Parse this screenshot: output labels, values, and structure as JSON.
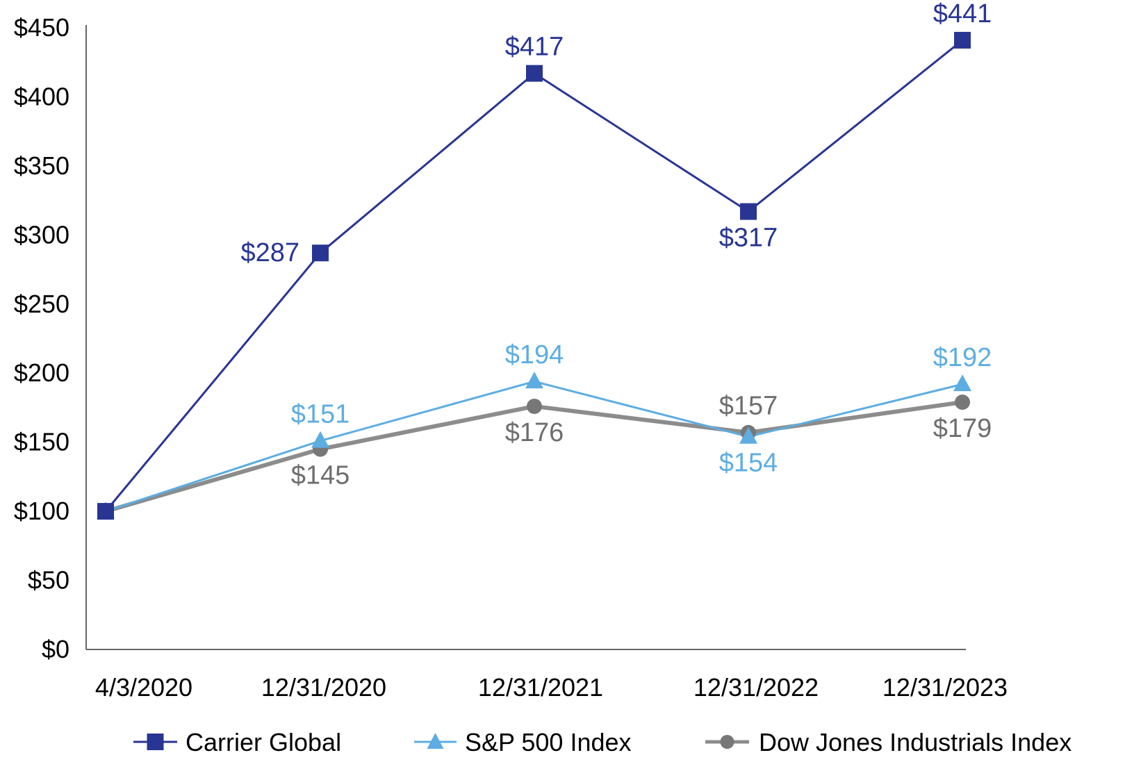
{
  "chart_data": {
    "type": "line",
    "categories": [
      "4/3/2020",
      "12/31/2020",
      "12/31/2021",
      "12/31/2022",
      "12/31/2023"
    ],
    "ylim": [
      0,
      450
    ],
    "yticks": [
      "$0",
      "$50",
      "$100",
      "$150",
      "$200",
      "$250",
      "$300",
      "$350",
      "$400",
      "$450"
    ],
    "ytick_values": [
      0,
      50,
      100,
      150,
      200,
      250,
      300,
      350,
      400,
      450
    ],
    "grid": false,
    "legend_position": "bottom",
    "series": [
      {
        "name": "Carrier Global",
        "color": "#283593",
        "marker": "square",
        "values": [
          100,
          287,
          417,
          317,
          441
        ],
        "labels": [
          "",
          "$287",
          "$417",
          "$317",
          "$441"
        ],
        "label_pos": [
          "",
          "left",
          "above",
          "below",
          "above"
        ]
      },
      {
        "name": "S&P 500 Index",
        "color": "#5dade2",
        "marker": "triangle",
        "values": [
          100,
          151,
          194,
          154,
          192
        ],
        "labels": [
          "",
          "$151",
          "$194",
          "$154",
          "$192"
        ],
        "label_pos": [
          "",
          "above",
          "above",
          "below",
          "above"
        ]
      },
      {
        "name": "Dow Jones Industrials Index",
        "color": "#8c8c8c",
        "marker": "circle",
        "values": [
          100,
          145,
          176,
          157,
          179
        ],
        "labels": [
          "",
          "$145",
          "$176",
          "$157",
          "$179"
        ],
        "label_pos": [
          "",
          "below",
          "below",
          "above",
          "below"
        ]
      }
    ]
  }
}
